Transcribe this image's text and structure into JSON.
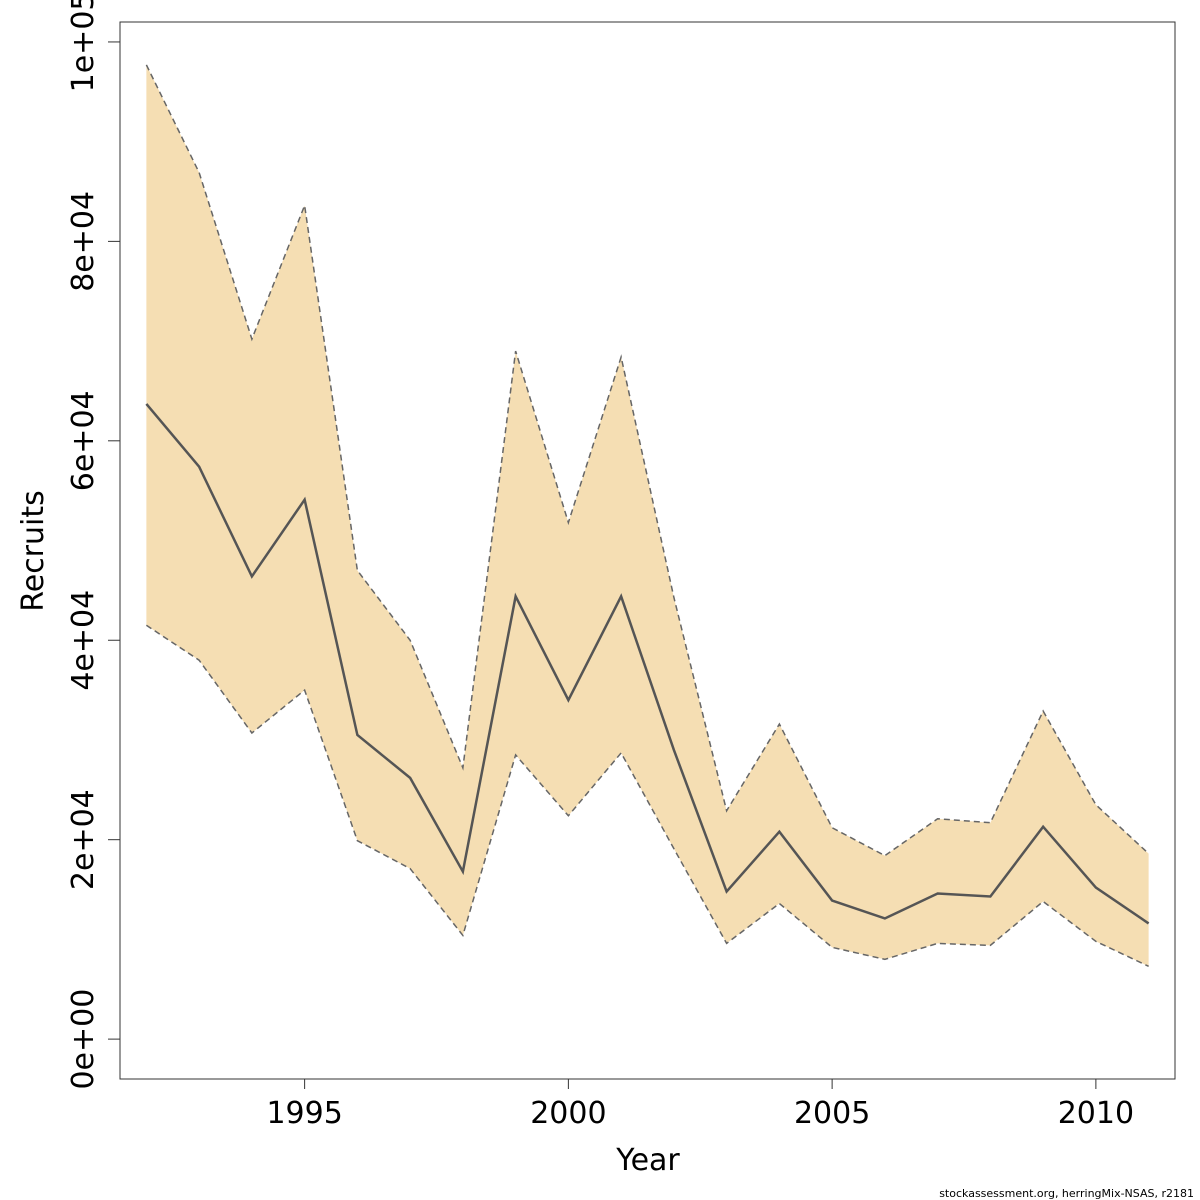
{
  "chart_data": {
    "type": "line",
    "xlabel": "Year",
    "ylabel": "Recruits",
    "xlim": [
      1991.5,
      2011.5
    ],
    "ylim": [
      -4000,
      102000
    ],
    "x_ticks": [
      {
        "value": 1995,
        "label": "1995"
      },
      {
        "value": 2000,
        "label": "2000"
      },
      {
        "value": 2005,
        "label": "2005"
      },
      {
        "value": 2010,
        "label": "2010"
      }
    ],
    "y_ticks": [
      {
        "value": 0,
        "label": "0e+00"
      },
      {
        "value": 20000,
        "label": "2e+04"
      },
      {
        "value": 40000,
        "label": "4e+04"
      },
      {
        "value": 60000,
        "label": "6e+04"
      },
      {
        "value": 80000,
        "label": "8e+04"
      },
      {
        "value": 100000,
        "label": "1e+05"
      }
    ],
    "x": [
      1992,
      1993,
      1994,
      1995,
      1996,
      1997,
      1998,
      1999,
      2000,
      2001,
      2002,
      2003,
      2004,
      2005,
      2006,
      2007,
      2008,
      2009,
      2010,
      2011
    ],
    "series": [
      {
        "role": "estimate",
        "values": [
          63700,
          57400,
          46400,
          54100,
          30500,
          26200,
          16800,
          44400,
          34000,
          44400,
          29000,
          14800,
          20800,
          13900,
          12100,
          14600,
          14300,
          21300,
          15200,
          11600
        ]
      },
      {
        "role": "lower",
        "values": [
          41500,
          38000,
          30700,
          35000,
          19900,
          17100,
          10400,
          28500,
          22400,
          28700,
          19100,
          9600,
          13600,
          9200,
          8000,
          9600,
          9400,
          13800,
          9800,
          7300
        ]
      },
      {
        "role": "upper",
        "values": [
          97700,
          86900,
          70200,
          83600,
          47000,
          40000,
          27200,
          69000,
          51800,
          68400,
          44300,
          22900,
          31600,
          21200,
          18400,
          22100,
          21700,
          32900,
          23500,
          18600
        ]
      }
    ],
    "grid": false,
    "legend": false,
    "colors": {
      "band": "#f5deb3",
      "line": "#555555",
      "bound": "#666666"
    },
    "footer": "stockassessment.org, herringMix-NSAS, r2181"
  }
}
